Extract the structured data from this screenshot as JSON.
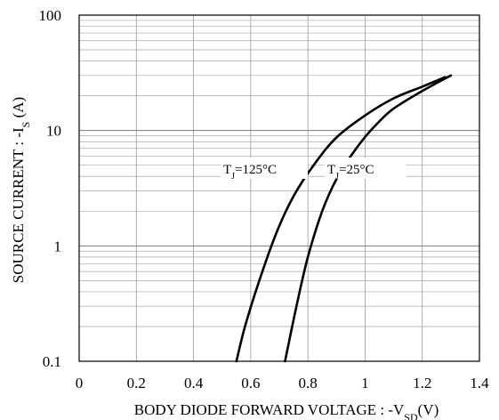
{
  "chart_data": {
    "type": "line",
    "x_axis": {
      "label_main": "BODY DIODE FORWARD VOLTAGE : -V",
      "label_sub": "SD",
      "label_tail": "(V)",
      "range": [
        0,
        1.4
      ],
      "ticks": [
        0,
        0.2,
        0.4,
        0.6,
        0.8,
        1,
        1.2,
        1.4
      ],
      "tick_labels": [
        "0",
        "0.2",
        "0.4",
        "0.6",
        "0.8",
        "1",
        "1.2",
        "1.4"
      ],
      "grid": true
    },
    "y_axis": {
      "label_main": "SOURCE CURRENT : -I",
      "label_sub": "S",
      "label_tail": " (A)",
      "scale": "log",
      "range": [
        0.1,
        100
      ],
      "ticks": [
        0.1,
        1,
        10,
        100
      ],
      "tick_labels": [
        "0.1",
        "1",
        "10",
        "100"
      ],
      "grid": true
    },
    "series": [
      {
        "label_main": "T",
        "label_sub": "J",
        "label_tail": "=125°C",
        "points": [
          [
            0.55,
            0.1
          ],
          [
            0.58,
            0.2
          ],
          [
            0.63,
            0.5
          ],
          [
            0.69,
            1.3
          ],
          [
            0.75,
            2.7
          ],
          [
            0.82,
            5
          ],
          [
            0.9,
            8.7
          ],
          [
            1.0,
            13.5
          ],
          [
            1.1,
            19
          ],
          [
            1.2,
            24
          ],
          [
            1.28,
            29
          ]
        ]
      },
      {
        "label_main": "T",
        "label_sub": "J",
        "label_tail": "=25°C",
        "points": [
          [
            0.72,
            0.1
          ],
          [
            0.76,
            0.3
          ],
          [
            0.8,
            0.8
          ],
          [
            0.85,
            2
          ],
          [
            0.9,
            3.8
          ],
          [
            0.95,
            6
          ],
          [
            1.0,
            8.8
          ],
          [
            1.05,
            12
          ],
          [
            1.1,
            15.5
          ],
          [
            1.2,
            22
          ],
          [
            1.3,
            30
          ]
        ]
      }
    ],
    "grid": true,
    "legend": "none"
  }
}
